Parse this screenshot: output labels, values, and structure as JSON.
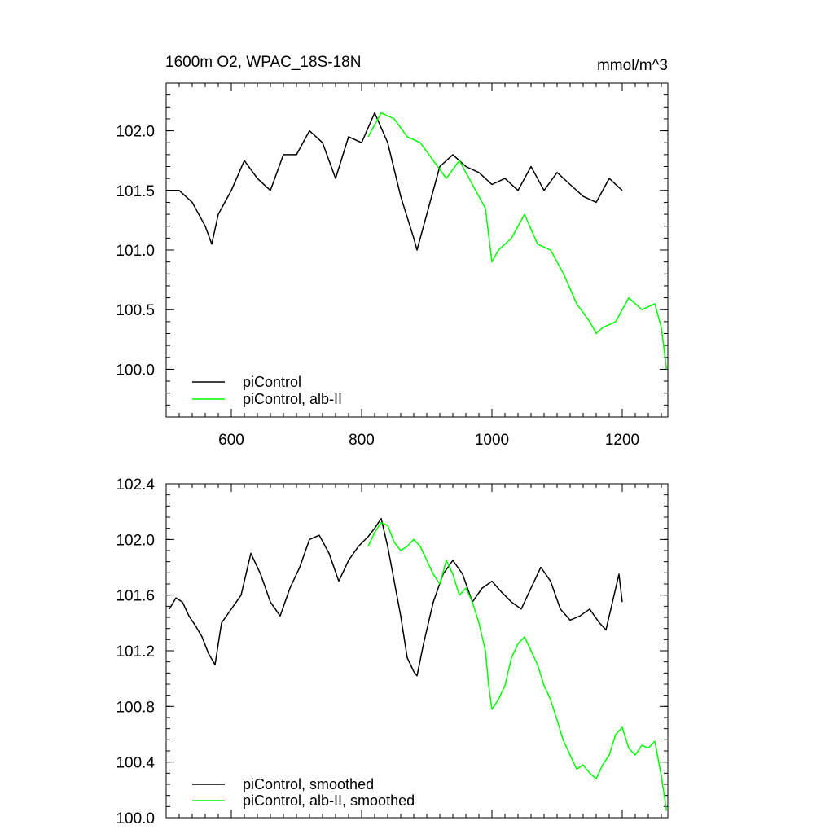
{
  "chart_data": [
    {
      "type": "line",
      "title": "1600m O2, WPAC_18S-18N",
      "units": "mmol/m^3",
      "xlim": [
        500,
        1270
      ],
      "ylim": [
        99.6,
        102.4
      ],
      "xticks": [
        600,
        800,
        1000,
        1200
      ],
      "xtick_labels": [
        "600",
        "800",
        "1000",
        "1200"
      ],
      "yticks": [
        100.0,
        100.5,
        101.0,
        101.5,
        102.0
      ],
      "ytick_labels": [
        "100.0",
        "100.5",
        "101.0",
        "101.5",
        "102.0"
      ],
      "series": [
        {
          "name": "piControl",
          "color": "#000000",
          "x": [
            500,
            520,
            540,
            560,
            570,
            580,
            600,
            620,
            640,
            660,
            680,
            700,
            720,
            740,
            760,
            780,
            800,
            820,
            840,
            860,
            880,
            885,
            900,
            920,
            940,
            960,
            980,
            1000,
            1020,
            1040,
            1060,
            1080,
            1100,
            1120,
            1140,
            1160,
            1180,
            1200
          ],
          "y": [
            101.5,
            101.5,
            101.4,
            101.2,
            101.05,
            101.3,
            101.5,
            101.75,
            101.6,
            101.5,
            101.8,
            101.8,
            102.0,
            101.9,
            101.6,
            101.95,
            101.9,
            102.15,
            101.9,
            101.45,
            101.1,
            101.0,
            101.3,
            101.7,
            101.8,
            101.7,
            101.65,
            101.55,
            101.6,
            101.5,
            101.7,
            101.5,
            101.65,
            101.55,
            101.45,
            101.4,
            101.6,
            101.5
          ]
        },
        {
          "name": "piControl, alb-II",
          "color": "#00ff00",
          "x": [
            810,
            830,
            850,
            870,
            890,
            910,
            930,
            950,
            970,
            990,
            1000,
            1010,
            1030,
            1050,
            1070,
            1090,
            1110,
            1130,
            1150,
            1160,
            1170,
            1190,
            1210,
            1230,
            1250,
            1260,
            1268
          ],
          "y": [
            101.95,
            102.15,
            102.1,
            101.95,
            101.9,
            101.75,
            101.6,
            101.75,
            101.55,
            101.35,
            100.9,
            101.0,
            101.1,
            101.3,
            101.05,
            101.0,
            100.8,
            100.55,
            100.4,
            100.3,
            100.35,
            100.4,
            100.6,
            100.5,
            100.55,
            100.35,
            100.0
          ]
        }
      ],
      "legend": "bottom-left",
      "grid": false
    },
    {
      "type": "line",
      "title": "",
      "xlim": [
        500,
        1270
      ],
      "ylim": [
        100.0,
        102.4
      ],
      "xticks": [
        600,
        800,
        1000,
        1200
      ],
      "yticks": [
        100.0,
        100.4,
        100.8,
        101.2,
        101.6,
        102.0,
        102.4
      ],
      "ytick_labels": [
        "100.0",
        "100.4",
        "100.8",
        "101.2",
        "101.6",
        "102.0",
        "102.4"
      ],
      "series": [
        {
          "name": "piControl, smoothed",
          "color": "#000000",
          "x": [
            505,
            515,
            525,
            535,
            545,
            555,
            565,
            575,
            585,
            600,
            615,
            630,
            645,
            660,
            675,
            690,
            705,
            720,
            735,
            750,
            765,
            780,
            795,
            810,
            820,
            830,
            840,
            850,
            860,
            870,
            880,
            885,
            895,
            910,
            925,
            940,
            955,
            970,
            985,
            1000,
            1015,
            1030,
            1045,
            1060,
            1075,
            1090,
            1105,
            1120,
            1135,
            1150,
            1165,
            1175,
            1185,
            1195,
            1200
          ],
          "y": [
            101.5,
            101.58,
            101.55,
            101.45,
            101.38,
            101.3,
            101.18,
            101.1,
            101.4,
            101.5,
            101.6,
            101.9,
            101.75,
            101.55,
            101.45,
            101.65,
            101.8,
            102.0,
            102.03,
            101.9,
            101.7,
            101.85,
            101.95,
            102.02,
            102.08,
            102.15,
            101.95,
            101.7,
            101.45,
            101.15,
            101.05,
            101.02,
            101.25,
            101.55,
            101.75,
            101.85,
            101.75,
            101.55,
            101.65,
            101.7,
            101.62,
            101.55,
            101.5,
            101.65,
            101.8,
            101.7,
            101.5,
            101.42,
            101.45,
            101.5,
            101.4,
            101.35,
            101.55,
            101.75,
            101.55
          ]
        },
        {
          "name": "piControl, alb-II, smoothed",
          "color": "#00ff00",
          "x": [
            810,
            820,
            830,
            840,
            850,
            860,
            870,
            880,
            890,
            900,
            910,
            920,
            930,
            940,
            950,
            960,
            970,
            980,
            990,
            995,
            1000,
            1010,
            1020,
            1030,
            1040,
            1050,
            1060,
            1070,
            1080,
            1090,
            1100,
            1110,
            1120,
            1130,
            1140,
            1150,
            1160,
            1170,
            1180,
            1190,
            1200,
            1210,
            1220,
            1230,
            1240,
            1250,
            1260,
            1268
          ],
          "y": [
            101.95,
            102.05,
            102.12,
            102.1,
            101.98,
            101.92,
            101.95,
            102.0,
            101.95,
            101.85,
            101.75,
            101.68,
            101.85,
            101.75,
            101.6,
            101.65,
            101.55,
            101.4,
            101.2,
            100.95,
            100.78,
            100.85,
            100.95,
            101.15,
            101.25,
            101.3,
            101.2,
            101.1,
            100.95,
            100.85,
            100.7,
            100.55,
            100.45,
            100.35,
            100.38,
            100.32,
            100.28,
            100.38,
            100.45,
            100.6,
            100.65,
            100.5,
            100.45,
            100.52,
            100.5,
            100.55,
            100.3,
            100.05
          ]
        }
      ],
      "legend": "bottom-left",
      "grid": false
    }
  ]
}
